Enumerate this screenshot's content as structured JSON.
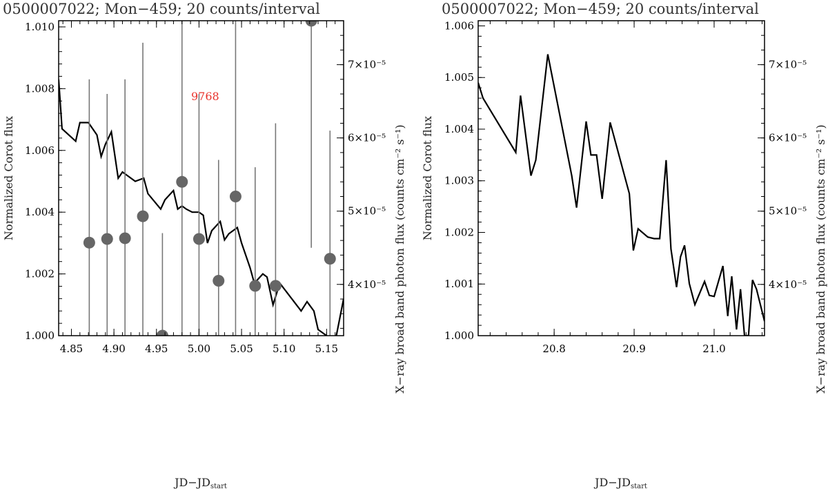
{
  "chart_data": [
    {
      "type": "line",
      "title": "0500007022; Mon−459; 20 counts/interval",
      "xlabel_main": "JD−JD",
      "xlabel_sub": "start",
      "ylabel": "Normalized Corot flux",
      "y2label": "X−ray broad band photon flux (counts cm⁻² s⁻¹)",
      "xlim": [
        4.835,
        5.17
      ],
      "ylim": [
        1.0,
        1.0102
      ],
      "y2lim": [
        3.3e-05,
        7.6e-05
      ],
      "xticks": [
        "4.85",
        "4.90",
        "4.95",
        "5.00",
        "5.05",
        "5.10",
        "5.15"
      ],
      "yticks": [
        "1.000",
        "1.002",
        "1.004",
        "1.006",
        "1.008",
        "1.010"
      ],
      "y2ticks": [
        "4×10⁻⁵",
        "5×10⁻⁵",
        "6×10⁻⁵",
        "7×10⁻⁵"
      ],
      "annotation": {
        "text": "9768",
        "color": "#e8312b"
      },
      "line_color": "#000000",
      "marker_color": "#666666",
      "series": [
        {
          "kind": "line",
          "x": [
            4.835,
            4.839,
            4.855,
            4.86,
            4.87,
            4.88,
            4.885,
            4.89,
            4.897,
            4.905,
            4.91,
            4.915,
            4.925,
            4.935,
            4.94,
            4.955,
            4.96,
            4.97,
            4.975,
            4.98,
            4.985,
            4.992,
            5.0,
            5.005,
            5.01,
            5.015,
            5.025,
            5.03,
            5.035,
            5.045,
            5.05,
            5.06,
            5.065,
            5.075,
            5.08,
            5.087,
            5.095,
            5.12,
            5.127,
            5.135,
            5.14,
            5.15,
            5.16,
            5.17
          ],
          "y": [
            1.0083,
            1.0067,
            1.0063,
            1.0069,
            1.0069,
            1.0065,
            1.0058,
            1.0062,
            1.0066,
            1.0051,
            1.0053,
            1.0052,
            1.005,
            1.0051,
            1.0046,
            1.0041,
            1.0044,
            1.0047,
            1.0041,
            1.0042,
            1.0041,
            1.004,
            1.004,
            1.0039,
            1.003,
            1.0034,
            1.0037,
            1.0031,
            1.0033,
            1.0035,
            1.003,
            1.0022,
            1.0017,
            1.002,
            1.0019,
            1.001,
            1.0017,
            1.0008,
            1.0011,
            1.0008,
            1.0002,
            1.0,
            0.9998,
            1.0012
          ]
        },
        {
          "kind": "errorbar",
          "x": [
            4.871,
            4.892,
            4.913,
            4.934,
            4.957,
            4.98,
            5.0,
            5.023,
            5.043,
            5.066,
            5.09,
            5.132,
            5.154
          ],
          "y": [
            4.57e-05,
            4.62e-05,
            4.63e-05,
            4.93e-05,
            3.3e-05,
            5.4e-05,
            4.62e-05,
            4.05e-05,
            5.2e-05,
            3.98e-05,
            3.98e-05,
            7.6e-05,
            4.35e-05
          ],
          "y_upper": [
            6.8e-05,
            6.6e-05,
            6.8e-05,
            7.3e-05,
            4.7e-05,
            8.5e-05,
            6.6e-05,
            5.7e-05,
            7.8e-05,
            5.6e-05,
            6.2e-05,
            8e-05,
            6.1e-05
          ],
          "y_lower": [
            3.3e-05,
            3.3e-05,
            3.3e-05,
            3.3e-05,
            3.3e-05,
            3.3e-05,
            3.3e-05,
            3.3e-05,
            3.3e-05,
            3.3e-05,
            3.3e-05,
            4.5e-05,
            3.3e-05
          ]
        }
      ]
    },
    {
      "type": "line",
      "title": "0500007022; Mon−459; 20 counts/interval",
      "xlabel_main": "JD−JD",
      "xlabel_sub": "start",
      "ylabel": "Normalized Corot flux",
      "y2label": "X−ray broad band photon flux (counts cm⁻² s⁻¹)",
      "xlim": [
        20.705,
        21.063
      ],
      "ylim": [
        1.0,
        1.0061
      ],
      "y2lim": [
        3.3e-05,
        7.6e-05
      ],
      "xticks": [
        "20.8",
        "20.9",
        "21.0"
      ],
      "yticks": [
        "1.000",
        "1.001",
        "1.002",
        "1.003",
        "1.004",
        "1.005",
        "1.006"
      ],
      "y2ticks": [
        "4×10⁻⁵",
        "5×10⁻⁵",
        "6×10⁻⁵",
        "7×10⁻⁵"
      ],
      "line_color": "#000000",
      "series": [
        {
          "kind": "line",
          "x": [
            20.705,
            20.711,
            20.752,
            20.758,
            20.771,
            20.777,
            20.792,
            20.822,
            20.828,
            20.84,
            20.846,
            20.853,
            20.86,
            20.87,
            20.894,
            20.899,
            20.905,
            20.917,
            20.925,
            20.932,
            20.94,
            20.946,
            20.953,
            20.958,
            20.963,
            20.969,
            20.976,
            20.988,
            20.994,
            21.0,
            21.011,
            21.017,
            21.022,
            21.028,
            21.033,
            21.038,
            21.043,
            21.048,
            21.053,
            21.063
          ],
          "y": [
            1.0049,
            1.0046,
            1.00355,
            1.00465,
            1.0031,
            1.0034,
            1.00545,
            1.0031,
            1.00248,
            1.00415,
            1.0035,
            1.0035,
            1.00265,
            1.00413,
            1.00275,
            1.00165,
            1.00207,
            1.00191,
            1.00188,
            1.00188,
            1.0034,
            1.00168,
            1.00094,
            1.00153,
            1.00175,
            1.00101,
            1.0006,
            1.00105,
            1.00078,
            1.00076,
            1.00135,
            1.00038,
            1.00115,
            1.00012,
            1.0009,
            1.0,
            1.0,
            1.00108,
            1.0009,
            1.00028
          ]
        }
      ]
    }
  ]
}
